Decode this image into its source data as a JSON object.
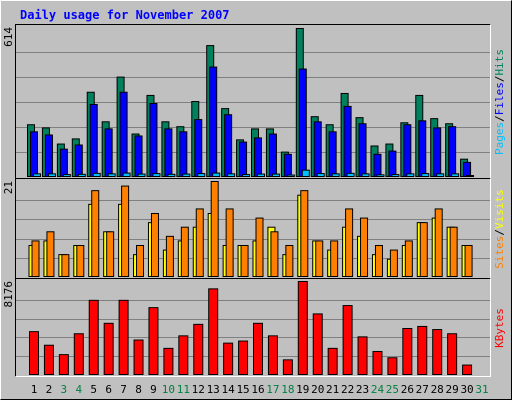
{
  "title": "Daily usage for November 2007",
  "categories": [
    "1",
    "2",
    "3",
    "4",
    "5",
    "6",
    "7",
    "8",
    "9",
    "10",
    "11",
    "12",
    "13",
    "14",
    "15",
    "16",
    "17",
    "18",
    "19",
    "20",
    "21",
    "22",
    "23",
    "24",
    "25",
    "26",
    "27",
    "28",
    "29",
    "30",
    "31"
  ],
  "category_colors": [
    "#000000",
    "#000000",
    "#008040",
    "#008040",
    "#000000",
    "#000000",
    "#000000",
    "#000000",
    "#000000",
    "#008040",
    "#008040",
    "#000000",
    "#000000",
    "#000000",
    "#000000",
    "#000000",
    "#008040",
    "#008040",
    "#000000",
    "#000000",
    "#000000",
    "#000000",
    "#000000",
    "#008040",
    "#008040",
    "#000000",
    "#000000",
    "#000000",
    "#000000",
    "#000000",
    "#008040"
  ],
  "legend_separator": "/",
  "chart_data": [
    {
      "type": "bar",
      "ylim": [
        0,
        614
      ],
      "yticks": [
        614
      ],
      "grid_lines": 5,
      "series": [
        {
          "name": "Hits",
          "color": "#00805c",
          "values": [
            216,
            203,
            137,
            158,
            349,
            228,
            411,
            178,
            336,
            228,
            208,
            311,
            540,
            282,
            154,
            199,
            199,
            104,
            610,
            249,
            216,
            344,
            245,
            129,
            137,
            224,
            336,
            241,
            220,
            75,
            0
          ]
        },
        {
          "name": "Files",
          "color": "#0000ff",
          "values": [
            187,
            174,
            116,
            133,
            299,
            199,
            349,
            170,
            303,
            199,
            187,
            237,
            452,
            257,
            145,
            162,
            178,
            95,
            444,
            228,
            187,
            291,
            220,
            95,
            108,
            216,
            232,
            203,
            208,
            62,
            0
          ]
        },
        {
          "name": "Pages",
          "color": "#00c0ff",
          "values": [
            15,
            15,
            12,
            13,
            17,
            15,
            18,
            14,
            16,
            13,
            14,
            16,
            18,
            15,
            12,
            14,
            14,
            10,
            30,
            16,
            15,
            17,
            15,
            11,
            12,
            15,
            16,
            15,
            15,
            8,
            0
          ]
        }
      ]
    },
    {
      "type": "bar",
      "ylim": [
        0,
        21
      ],
      "yticks": [
        21
      ],
      "grid_lines": 4,
      "series": [
        {
          "name": "Visits",
          "color": "#ffff00",
          "values": [
            7,
            8,
            5,
            7,
            16,
            10,
            16,
            5,
            12,
            6,
            8,
            11,
            14,
            7,
            7,
            8,
            11,
            5,
            18,
            8,
            6,
            11,
            9,
            5,
            4,
            7,
            12,
            13,
            11,
            7,
            0
          ]
        },
        {
          "name": "Sites",
          "color": "#ff8000",
          "values": [
            8,
            10,
            5,
            7,
            19,
            10,
            20,
            7,
            14,
            9,
            11,
            15,
            21,
            15,
            7,
            13,
            10,
            7,
            19,
            8,
            8,
            15,
            13,
            7,
            6,
            8,
            12,
            15,
            11,
            7,
            0
          ]
        }
      ]
    },
    {
      "type": "bar",
      "ylim": [
        0,
        8176
      ],
      "yticks": [
        8176
      ],
      "grid_lines": 4,
      "series": [
        {
          "name": "KBytes",
          "color": "#ff0000",
          "values": [
            3814,
            2633,
            1816,
            3632,
            6538,
            4540,
            6538,
            3087,
            5902,
            2361,
            3450,
            4449,
            7536,
            2815,
            2996,
            4540,
            3450,
            1362,
            8176,
            5357,
            2361,
            6084,
            3360,
            2088,
            1544,
            4086,
            4268,
            3995,
            3632,
            908,
            0
          ]
        }
      ]
    }
  ]
}
